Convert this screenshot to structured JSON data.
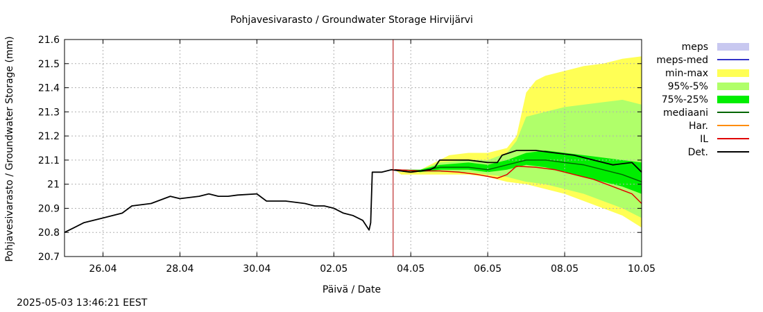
{
  "chart_data": {
    "type": "line",
    "title": "Pohjavesivarasto / Groundwater Storage   Hirvijärvi",
    "xlabel": "Päivä / Date",
    "ylabel": "Pohjavesivarasto / Groundwater Storage (mm)",
    "ylim": [
      20.7,
      21.6
    ],
    "xlim": [
      "2025-04-25",
      "2025-05-10"
    ],
    "grid": true,
    "legend_position": "right",
    "y_ticks": [
      "20.7",
      "20.8",
      "20.9",
      "21",
      "21.1",
      "21.2",
      "21.3",
      "21.4",
      "21.5",
      "21.6"
    ],
    "x_ticks": [
      {
        "date": "2025-04-26",
        "label": "26.04"
      },
      {
        "date": "2025-04-28",
        "label": "28.04"
      },
      {
        "date": "2025-04-30",
        "label": "30.04"
      },
      {
        "date": "2025-05-02",
        "label": "02.05"
      },
      {
        "date": "2025-05-04",
        "label": "04.05"
      },
      {
        "date": "2025-05-06",
        "label": "06.05"
      },
      {
        "date": "2025-05-08",
        "label": "08.05"
      },
      {
        "date": "2025-05-10",
        "label": "10.05"
      }
    ],
    "forecast_start": "2025-05-03T13:00",
    "legend": [
      {
        "label": "meps",
        "color": "#c8c8f0",
        "kind": "box"
      },
      {
        "label": "meps-med",
        "color": "#3232c8",
        "kind": "line"
      },
      {
        "label": "min-max",
        "color": "#ffff55",
        "kind": "box"
      },
      {
        "label": "95%-5%",
        "color": "#b0ff6a",
        "kind": "box"
      },
      {
        "label": "75%-25%",
        "color": "#00ee00",
        "kind": "box"
      },
      {
        "label": "mediaani",
        "color": "#006400",
        "kind": "line"
      },
      {
        "label": "Har.",
        "color": "#ff8c00",
        "kind": "line"
      },
      {
        "label": "IL",
        "color": "#e00000",
        "kind": "line"
      },
      {
        "label": "Det.",
        "color": "#000000",
        "kind": "line"
      }
    ],
    "bands": [
      {
        "name": "min-max",
        "color": "#ffff55",
        "upper": [
          [
            "2025-05-03T14:00",
            21.06
          ],
          [
            "2025-05-03T18:00",
            21.05
          ],
          [
            "2025-05-04T06:00",
            21.06
          ],
          [
            "2025-05-04T18:00",
            21.1
          ],
          [
            "2025-05-05T00:00",
            21.12
          ],
          [
            "2025-05-05T12:00",
            21.13
          ],
          [
            "2025-05-06T00:00",
            21.13
          ],
          [
            "2025-05-06T12:00",
            21.15
          ],
          [
            "2025-05-06T18:00",
            21.2
          ],
          [
            "2025-05-07T00:00",
            21.38
          ],
          [
            "2025-05-07T06:00",
            21.43
          ],
          [
            "2025-05-07T12:00",
            21.45
          ],
          [
            "2025-05-08T00:00",
            21.47
          ],
          [
            "2025-05-08T12:00",
            21.49
          ],
          [
            "2025-05-09T00:00",
            21.5
          ],
          [
            "2025-05-09T12:00",
            21.52
          ],
          [
            "2025-05-10T00:00",
            21.53
          ]
        ],
        "lower": [
          [
            "2025-05-03T14:00",
            21.06
          ],
          [
            "2025-05-03T18:00",
            21.04
          ],
          [
            "2025-05-04T06:00",
            21.04
          ],
          [
            "2025-05-04T18:00",
            21.04
          ],
          [
            "2025-05-05T12:00",
            21.04
          ],
          [
            "2025-05-06T00:00",
            21.03
          ],
          [
            "2025-05-06T12:00",
            21.01
          ],
          [
            "2025-05-07T00:00",
            21.0
          ],
          [
            "2025-05-07T12:00",
            20.98
          ],
          [
            "2025-05-08T00:00",
            20.96
          ],
          [
            "2025-05-08T12:00",
            20.93
          ],
          [
            "2025-05-09T00:00",
            20.9
          ],
          [
            "2025-05-09T12:00",
            20.87
          ],
          [
            "2025-05-10T00:00",
            20.82
          ]
        ]
      },
      {
        "name": "95%-5%",
        "color": "#b0ff6a",
        "upper": [
          [
            "2025-05-03T14:00",
            21.06
          ],
          [
            "2025-05-04T06:00",
            21.06
          ],
          [
            "2025-05-04T18:00",
            21.09
          ],
          [
            "2025-05-05T12:00",
            21.1
          ],
          [
            "2025-05-06T00:00",
            21.1
          ],
          [
            "2025-05-06T12:00",
            21.13
          ],
          [
            "2025-05-06T18:00",
            21.18
          ],
          [
            "2025-05-07T00:00",
            21.28
          ],
          [
            "2025-05-07T12:00",
            21.3
          ],
          [
            "2025-05-08T00:00",
            21.32
          ],
          [
            "2025-05-08T12:00",
            21.33
          ],
          [
            "2025-05-09T00:00",
            21.34
          ],
          [
            "2025-05-09T12:00",
            21.35
          ],
          [
            "2025-05-10T00:00",
            21.33
          ]
        ],
        "lower": [
          [
            "2025-05-03T14:00",
            21.06
          ],
          [
            "2025-05-04T06:00",
            21.05
          ],
          [
            "2025-05-04T18:00",
            21.05
          ],
          [
            "2025-05-05T12:00",
            21.05
          ],
          [
            "2025-05-06T00:00",
            21.04
          ],
          [
            "2025-05-06T12:00",
            21.03
          ],
          [
            "2025-05-07T00:00",
            21.01
          ],
          [
            "2025-05-07T12:00",
            21.0
          ],
          [
            "2025-05-08T00:00",
            20.98
          ],
          [
            "2025-05-08T12:00",
            20.96
          ],
          [
            "2025-05-09T00:00",
            20.93
          ],
          [
            "2025-05-09T12:00",
            20.9
          ],
          [
            "2025-05-10T00:00",
            20.86
          ]
        ]
      },
      {
        "name": "75%-25%",
        "color": "#00ee00",
        "upper": [
          [
            "2025-05-03T14:00",
            21.06
          ],
          [
            "2025-05-04T06:00",
            21.06
          ],
          [
            "2025-05-04T18:00",
            21.08
          ],
          [
            "2025-05-05T12:00",
            21.09
          ],
          [
            "2025-05-06T00:00",
            21.08
          ],
          [
            "2025-05-06T12:00",
            21.1
          ],
          [
            "2025-05-07T00:00",
            21.13
          ],
          [
            "2025-05-07T12:00",
            21.14
          ],
          [
            "2025-05-08T00:00",
            21.13
          ],
          [
            "2025-05-08T12:00",
            21.12
          ],
          [
            "2025-05-09T00:00",
            21.11
          ],
          [
            "2025-05-09T12:00",
            21.1
          ],
          [
            "2025-05-10T00:00",
            21.09
          ]
        ],
        "lower": [
          [
            "2025-05-03T14:00",
            21.06
          ],
          [
            "2025-05-04T06:00",
            21.05
          ],
          [
            "2025-05-04T18:00",
            21.06
          ],
          [
            "2025-05-05T12:00",
            21.06
          ],
          [
            "2025-05-06T00:00",
            21.05
          ],
          [
            "2025-05-06T12:00",
            21.06
          ],
          [
            "2025-05-07T00:00",
            21.08
          ],
          [
            "2025-05-07T12:00",
            21.07
          ],
          [
            "2025-05-08T00:00",
            21.05
          ],
          [
            "2025-05-08T12:00",
            21.03
          ],
          [
            "2025-05-09T00:00",
            21.01
          ],
          [
            "2025-05-09T12:00",
            20.99
          ],
          [
            "2025-05-10T00:00",
            20.96
          ]
        ]
      }
    ],
    "series": [
      {
        "name": "mediaani",
        "color": "#006400",
        "points": [
          [
            "2025-05-03T14:00",
            21.06
          ],
          [
            "2025-05-04T06:00",
            21.055
          ],
          [
            "2025-05-04T18:00",
            21.07
          ],
          [
            "2025-05-05T12:00",
            21.07
          ],
          [
            "2025-05-06T00:00",
            21.06
          ],
          [
            "2025-05-06T12:00",
            21.08
          ],
          [
            "2025-05-07T00:00",
            21.1
          ],
          [
            "2025-05-07T12:00",
            21.1
          ],
          [
            "2025-05-08T00:00",
            21.09
          ],
          [
            "2025-05-08T12:00",
            21.08
          ],
          [
            "2025-05-09T00:00",
            21.06
          ],
          [
            "2025-05-09T12:00",
            21.04
          ],
          [
            "2025-05-10T00:00",
            21.01
          ]
        ]
      },
      {
        "name": "IL",
        "color": "#e00000",
        "points": [
          [
            "2025-05-03T14:00",
            21.06
          ],
          [
            "2025-05-04T06:00",
            21.055
          ],
          [
            "2025-05-04T18:00",
            21.055
          ],
          [
            "2025-05-05T06:00",
            21.05
          ],
          [
            "2025-05-05T18:00",
            21.04
          ],
          [
            "2025-05-06T06:00",
            21.025
          ],
          [
            "2025-05-06T12:00",
            21.04
          ],
          [
            "2025-05-06T18:00",
            21.075
          ],
          [
            "2025-05-07T06:00",
            21.07
          ],
          [
            "2025-05-07T18:00",
            21.06
          ],
          [
            "2025-05-08T06:00",
            21.04
          ],
          [
            "2025-05-08T18:00",
            21.02
          ],
          [
            "2025-05-09T06:00",
            20.99
          ],
          [
            "2025-05-09T18:00",
            20.96
          ],
          [
            "2025-05-10T00:00",
            20.92
          ]
        ]
      },
      {
        "name": "Det.",
        "color": "#000000",
        "points": [
          [
            "2025-04-25T00:00",
            20.8
          ],
          [
            "2025-04-25T06:00",
            20.82
          ],
          [
            "2025-04-25T12:00",
            20.84
          ],
          [
            "2025-04-26T00:00",
            20.86
          ],
          [
            "2025-04-26T12:00",
            20.88
          ],
          [
            "2025-04-26T18:00",
            20.91
          ],
          [
            "2025-04-27T06:00",
            20.92
          ],
          [
            "2025-04-27T18:00",
            20.95
          ],
          [
            "2025-04-28T00:00",
            20.94
          ],
          [
            "2025-04-28T12:00",
            20.95
          ],
          [
            "2025-04-28T18:00",
            20.96
          ],
          [
            "2025-04-29T00:00",
            20.95
          ],
          [
            "2025-04-29T06:00",
            20.95
          ],
          [
            "2025-04-29T12:00",
            20.955
          ],
          [
            "2025-04-30T00:00",
            20.96
          ],
          [
            "2025-04-30T06:00",
            20.93
          ],
          [
            "2025-04-30T18:00",
            20.93
          ],
          [
            "2025-05-01T06:00",
            20.92
          ],
          [
            "2025-05-01T12:00",
            20.91
          ],
          [
            "2025-05-01T18:00",
            20.91
          ],
          [
            "2025-05-02T00:00",
            20.9
          ],
          [
            "2025-05-02T06:00",
            20.88
          ],
          [
            "2025-05-02T12:00",
            20.87
          ],
          [
            "2025-05-02T18:00",
            20.85
          ],
          [
            "2025-05-02T21:00",
            20.82
          ],
          [
            "2025-05-02T22:00",
            20.81
          ],
          [
            "2025-05-02T23:00",
            20.84
          ],
          [
            "2025-05-03T00:00",
            21.05
          ],
          [
            "2025-05-03T06:00",
            21.05
          ],
          [
            "2025-05-03T12:00",
            21.06
          ],
          [
            "2025-05-04T00:00",
            21.05
          ],
          [
            "2025-05-04T12:00",
            21.06
          ],
          [
            "2025-05-04T15:00",
            21.07
          ],
          [
            "2025-05-04T18:00",
            21.1
          ],
          [
            "2025-05-05T00:00",
            21.1
          ],
          [
            "2025-05-05T12:00",
            21.1
          ],
          [
            "2025-05-06T00:00",
            21.09
          ],
          [
            "2025-05-06T06:00",
            21.09
          ],
          [
            "2025-05-06T09:00",
            21.12
          ],
          [
            "2025-05-06T18:00",
            21.14
          ],
          [
            "2025-05-07T06:00",
            21.14
          ],
          [
            "2025-05-07T18:00",
            21.13
          ],
          [
            "2025-05-08T06:00",
            21.12
          ],
          [
            "2025-05-08T18:00",
            21.1
          ],
          [
            "2025-05-09T06:00",
            21.08
          ],
          [
            "2025-05-09T18:00",
            21.09
          ],
          [
            "2025-05-10T00:00",
            21.05
          ]
        ]
      }
    ]
  },
  "footer": {
    "timestamp": "2025-05-03 13:46:21 EEST"
  }
}
